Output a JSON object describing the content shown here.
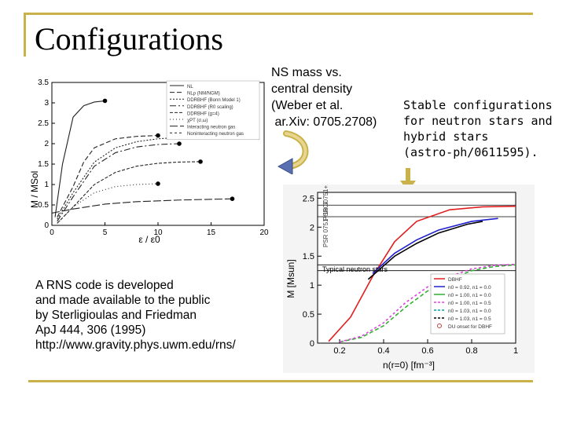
{
  "slide": {
    "title": "Configurations",
    "note_mass_density": [
      "NS mass vs.",
      "central density",
      "(Weber et al.",
      " ar.Xiv: 0705.2708)"
    ],
    "note_stable": [
      "Stable configurations",
      "for neutron stars and",
      "hybrid stars",
      "(astro-ph/0611595)."
    ],
    "note_rns": [
      "A RNS code is developed",
      "and made available to the public",
      "by Sterligioulas and Friedman",
      "ApJ 444, 306 (1995)",
      "http://www.gravity.phys.uwm.edu/rns/"
    ],
    "accent_color": "#c9b24a"
  },
  "chart_data": [
    {
      "type": "line",
      "xlabel": "ε / ε0",
      "ylabel": "M / MSol",
      "xlim": [
        0,
        20
      ],
      "ylim": [
        0,
        3.5
      ],
      "xticks": [
        "0",
        "5",
        "10",
        "15",
        "20"
      ],
      "yticks": [
        "0",
        "0.5",
        "1",
        "1.5",
        "2",
        "2.5",
        "3",
        "3.5"
      ],
      "legend_position": "top-right",
      "legend": [
        "NL",
        "NLρ (NM/NGM)",
        "DDRBHF (Bonn Model 1)",
        "DDRBHF (R0 scaling)",
        "DDRBHF (g=4)",
        "χPT (σ,ω)",
        "Interacting neutron gas",
        "Noninteracting neutron gas"
      ],
      "series": [
        {
          "name": "NL",
          "x": [
            0.3,
            1,
            2,
            3,
            4,
            5
          ],
          "y": [
            0.2,
            1.5,
            2.65,
            2.93,
            3.02,
            3.05
          ]
        },
        {
          "name": "DDRBHF (Bonn Model 1)",
          "x": [
            0.5,
            2,
            3,
            4,
            6,
            8,
            10
          ],
          "y": [
            0.2,
            0.95,
            1.55,
            1.9,
            2.12,
            2.18,
            2.2
          ]
        },
        {
          "name": "DDRBHF (R0 scaling)",
          "x": [
            0.5,
            2,
            4,
            6,
            8,
            10,
            12
          ],
          "y": [
            0.15,
            0.8,
            1.55,
            1.9,
            2.05,
            2.12,
            2.15
          ]
        },
        {
          "name": "Interacting neutron gas",
          "x": [
            0.5,
            2,
            4,
            6,
            8,
            10,
            12
          ],
          "y": [
            0.1,
            0.7,
            1.45,
            1.78,
            1.92,
            1.98,
            2.0
          ]
        },
        {
          "name": "Noninteracting neutron gas",
          "x": [
            0.5,
            2,
            4,
            6,
            8,
            10,
            12,
            14
          ],
          "y": [
            0.05,
            0.45,
            1.0,
            1.3,
            1.45,
            1.52,
            1.55,
            1.56
          ]
        },
        {
          "name": "χPT (σ,ω)",
          "x": [
            0.5,
            2,
            4,
            6,
            8,
            10
          ],
          "y": [
            0.05,
            0.45,
            0.8,
            0.95,
            1.0,
            1.02
          ]
        },
        {
          "name": "NLρ (NM/NGM)",
          "x": [
            0,
            2,
            5,
            8,
            12,
            17
          ],
          "y": [
            0.3,
            0.4,
            0.52,
            0.58,
            0.62,
            0.65
          ]
        }
      ]
    },
    {
      "type": "line",
      "xlabel": "n(r=0) [fm⁻³]",
      "ylabel": "M [Msun]",
      "xlim": [
        0.1,
        1.0
      ],
      "ylim": [
        0,
        2.6
      ],
      "xticks": [
        "0.2",
        "0.4",
        "0.6",
        "0.8",
        "1"
      ],
      "yticks": [
        "0",
        "0.5",
        "1",
        "1.5",
        "2",
        "2.5"
      ],
      "legend_position": "bottom-right",
      "legend": [
        "DBHF",
        "n0 = 0.92, n1 = 0.0",
        "n0 = 1.00, n1 = 0.0",
        "n0 = 1.00, n1 = 0.5",
        "n0 = 1.03, n1 = 0.0",
        "n0 = 1.03, n1 = 0.5",
        "DU onset for DBHF"
      ],
      "annotations": [
        "PSR J0751+1807",
        "PSR 0751+1807",
        "Typical neutron stars"
      ],
      "hlines": [
        2.38,
        2.18,
        1.35,
        1.25
      ],
      "series": [
        {
          "name": "DBHF",
          "color": "#e02020",
          "x": [
            0.15,
            0.25,
            0.35,
            0.45,
            0.55,
            0.7,
            0.85,
            1.0
          ],
          "y": [
            0.03,
            0.45,
            1.15,
            1.75,
            2.1,
            2.3,
            2.35,
            2.36
          ]
        },
        {
          "name": "n0 = 0.92, n1 = 0.0",
          "color": "#2020d0",
          "x": [
            0.35,
            0.45,
            0.55,
            0.65,
            0.8,
            0.92
          ],
          "y": [
            1.2,
            1.55,
            1.78,
            1.95,
            2.1,
            2.15
          ]
        },
        {
          "name": "n0 = 1.03, n1 = 0.5",
          "color": "#000000",
          "x": [
            0.33,
            0.45,
            0.55,
            0.65,
            0.78,
            0.85
          ],
          "y": [
            1.1,
            1.5,
            1.72,
            1.9,
            2.05,
            2.1
          ]
        },
        {
          "name": "n0 = 1.00, n1 = 0.0",
          "color": "#30b030",
          "x": [
            0.2,
            0.3,
            0.4,
            0.5,
            0.6,
            0.7,
            0.8,
            0.9,
            1.0
          ],
          "y": [
            0.02,
            0.1,
            0.3,
            0.62,
            0.9,
            1.1,
            1.25,
            1.32,
            1.35
          ]
        },
        {
          "name": "n0 = 1.00, n1 = 0.5",
          "color": "#e040e0",
          "x": [
            0.2,
            0.3,
            0.4,
            0.5,
            0.6,
            0.7,
            0.8,
            0.9,
            1.0
          ],
          "y": [
            0.02,
            0.12,
            0.35,
            0.7,
            0.97,
            1.15,
            1.28,
            1.34,
            1.36
          ]
        }
      ]
    }
  ]
}
